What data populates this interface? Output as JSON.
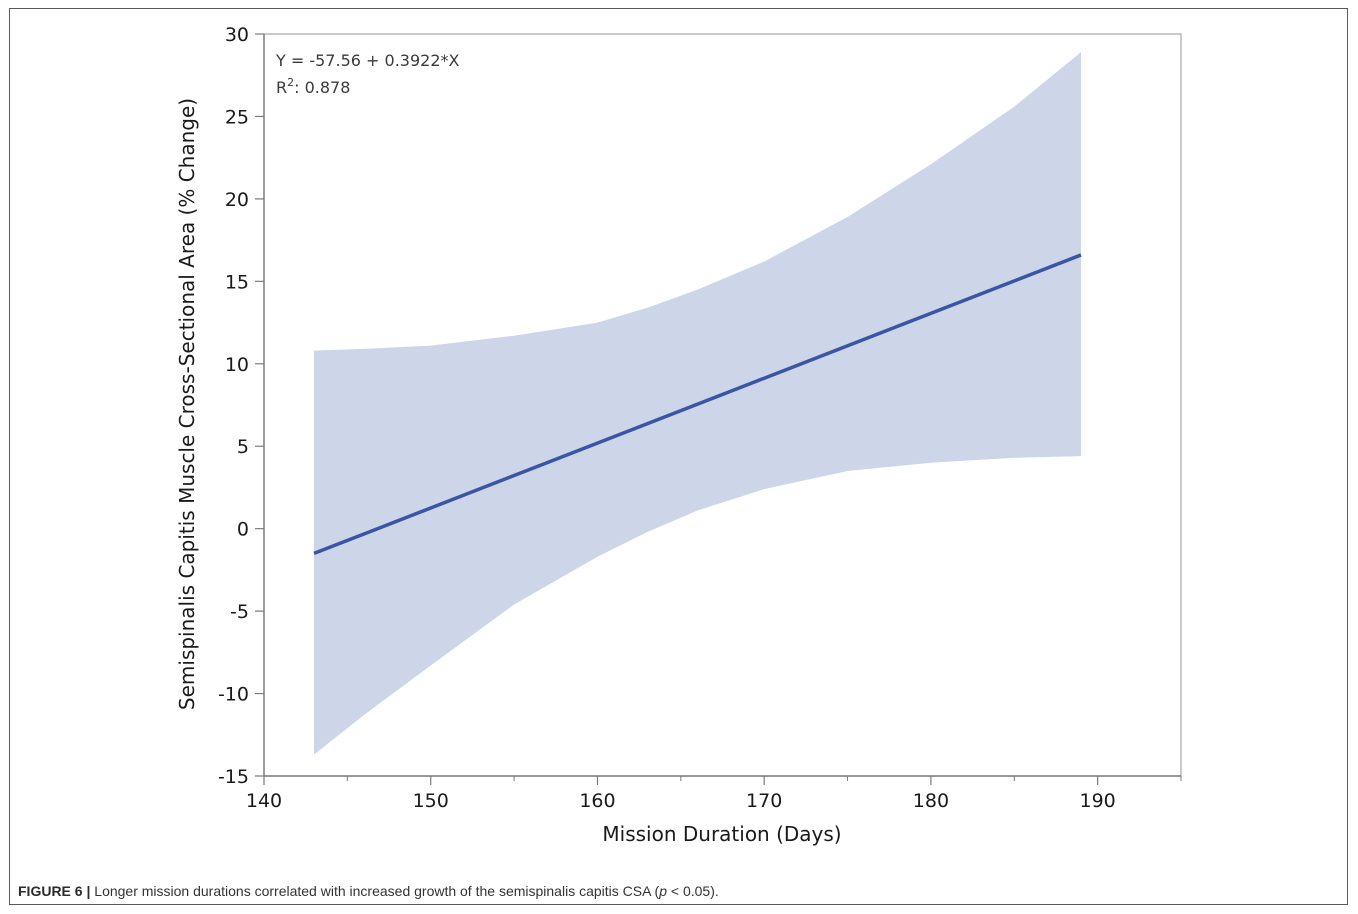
{
  "chart_data": {
    "type": "line",
    "xlabel": "Mission Duration (Days)",
    "ylabel": "Semispinalis Capitis Muscle Cross-Sectional Area (% Change)",
    "xlim": [
      140,
      195
    ],
    "ylim": [
      -15,
      30
    ],
    "x_ticks": [
      140,
      150,
      160,
      170,
      180,
      190
    ],
    "x_tick_labels": [
      "140",
      "150",
      "160",
      "170",
      "180",
      "190"
    ],
    "y_ticks": [
      -15,
      -10,
      -5,
      0,
      5,
      10,
      15,
      20,
      25,
      30
    ],
    "y_tick_labels": [
      "-15",
      "-10",
      "-5",
      "0",
      "5",
      "10",
      "15",
      "20",
      "25",
      "30"
    ],
    "grid": false,
    "equation": "Y = -57.56 + 0.3922*X",
    "r2_label": "R",
    "r2_sup": "2",
    "r2_value": ": 0.878",
    "fit_line": {
      "x": [
        143,
        189
      ],
      "y": [
        -1.5,
        16.6
      ],
      "color": "#3a55a4"
    },
    "confidence_band": {
      "color": "#cdd5e9",
      "x": [
        143,
        146,
        150,
        155,
        160,
        163,
        166,
        170,
        175,
        180,
        185,
        189
      ],
      "upper": [
        10.8,
        10.9,
        11.1,
        11.7,
        12.5,
        13.4,
        14.5,
        16.2,
        18.9,
        22.1,
        25.6,
        28.9
      ],
      "lower": [
        -13.7,
        -11.3,
        -8.3,
        -4.6,
        -1.7,
        -0.2,
        1.1,
        2.4,
        3.5,
        4.0,
        4.3,
        4.4
      ]
    }
  },
  "caption": {
    "figure_label": "FIGURE 6",
    "separator": " | ",
    "text_before": "Longer mission durations correlated with increased growth of the semispinalis capitis CSA (",
    "p_symbol": "p",
    "text_after": " < 0.05)."
  }
}
